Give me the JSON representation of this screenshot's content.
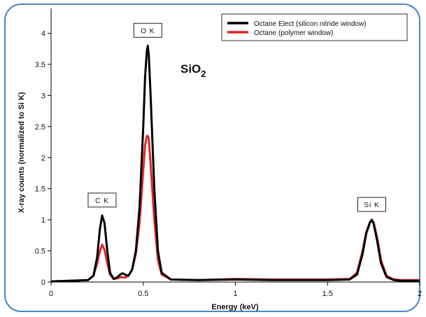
{
  "chart_data": {
    "type": "line",
    "title": "",
    "xlabel": "Energy (keV)",
    "ylabel": "X-ray counts (normalized to Si K)",
    "xlim": [
      0,
      2
    ],
    "ylim": [
      0,
      4.4
    ],
    "grid": false,
    "legend_position": "top-right",
    "xticks": [
      "0",
      "0.5",
      "1",
      "1.5",
      "2"
    ],
    "yticks": [
      "0",
      "0.5",
      "1",
      "1.5",
      "2",
      "2.5",
      "3",
      "3.5",
      "4"
    ],
    "compound": {
      "main": "SiO",
      "subscript": "2"
    },
    "peaks": [
      {
        "label": "C K",
        "energy": 0.277
      },
      {
        "label": "O K",
        "energy": 0.525
      },
      {
        "label": "Si K",
        "energy": 1.74
      }
    ],
    "series": [
      {
        "name": "Octane Elect (silicon nitride window)",
        "color": "#000000",
        "x": [
          0,
          0.1,
          0.2,
          0.23,
          0.25,
          0.265,
          0.277,
          0.29,
          0.305,
          0.32,
          0.34,
          0.36,
          0.38,
          0.39,
          0.4,
          0.42,
          0.44,
          0.46,
          0.48,
          0.5,
          0.51,
          0.52,
          0.525,
          0.53,
          0.54,
          0.56,
          0.58,
          0.6,
          0.65,
          0.8,
          1.0,
          1.2,
          1.5,
          1.62,
          1.66,
          1.69,
          1.71,
          1.73,
          1.74,
          1.75,
          1.77,
          1.79,
          1.82,
          1.86,
          1.9,
          2.0
        ],
        "y": [
          0.01,
          0.02,
          0.03,
          0.1,
          0.4,
          0.85,
          1.07,
          0.95,
          0.5,
          0.15,
          0.05,
          0.08,
          0.13,
          0.14,
          0.12,
          0.1,
          0.2,
          0.5,
          1.2,
          2.5,
          3.3,
          3.72,
          3.8,
          3.65,
          3.0,
          1.5,
          0.5,
          0.15,
          0.04,
          0.03,
          0.04,
          0.03,
          0.03,
          0.04,
          0.12,
          0.45,
          0.78,
          0.96,
          1.0,
          0.94,
          0.65,
          0.3,
          0.08,
          0.03,
          0.02,
          0.02
        ]
      },
      {
        "name": "Octane (polymer window)",
        "color": "#e02525",
        "x": [
          0,
          0.1,
          0.2,
          0.23,
          0.25,
          0.265,
          0.277,
          0.29,
          0.305,
          0.32,
          0.34,
          0.36,
          0.38,
          0.4,
          0.42,
          0.44,
          0.46,
          0.48,
          0.5,
          0.51,
          0.52,
          0.525,
          0.53,
          0.54,
          0.56,
          0.58,
          0.6,
          0.65,
          0.8,
          1.0,
          1.2,
          1.5,
          1.62,
          1.66,
          1.69,
          1.71,
          1.73,
          1.74,
          1.75,
          1.77,
          1.79,
          1.82,
          1.86,
          1.9,
          2.0
        ],
        "y": [
          0.01,
          0.02,
          0.03,
          0.1,
          0.3,
          0.5,
          0.6,
          0.52,
          0.3,
          0.12,
          0.05,
          0.06,
          0.08,
          0.07,
          0.1,
          0.2,
          0.45,
          0.95,
          1.8,
          2.2,
          2.35,
          2.35,
          2.3,
          1.9,
          1.0,
          0.35,
          0.12,
          0.04,
          0.03,
          0.05,
          0.04,
          0.04,
          0.05,
          0.15,
          0.5,
          0.8,
          0.96,
          1.0,
          0.96,
          0.7,
          0.35,
          0.1,
          0.04,
          0.03,
          0.03
        ]
      }
    ]
  }
}
